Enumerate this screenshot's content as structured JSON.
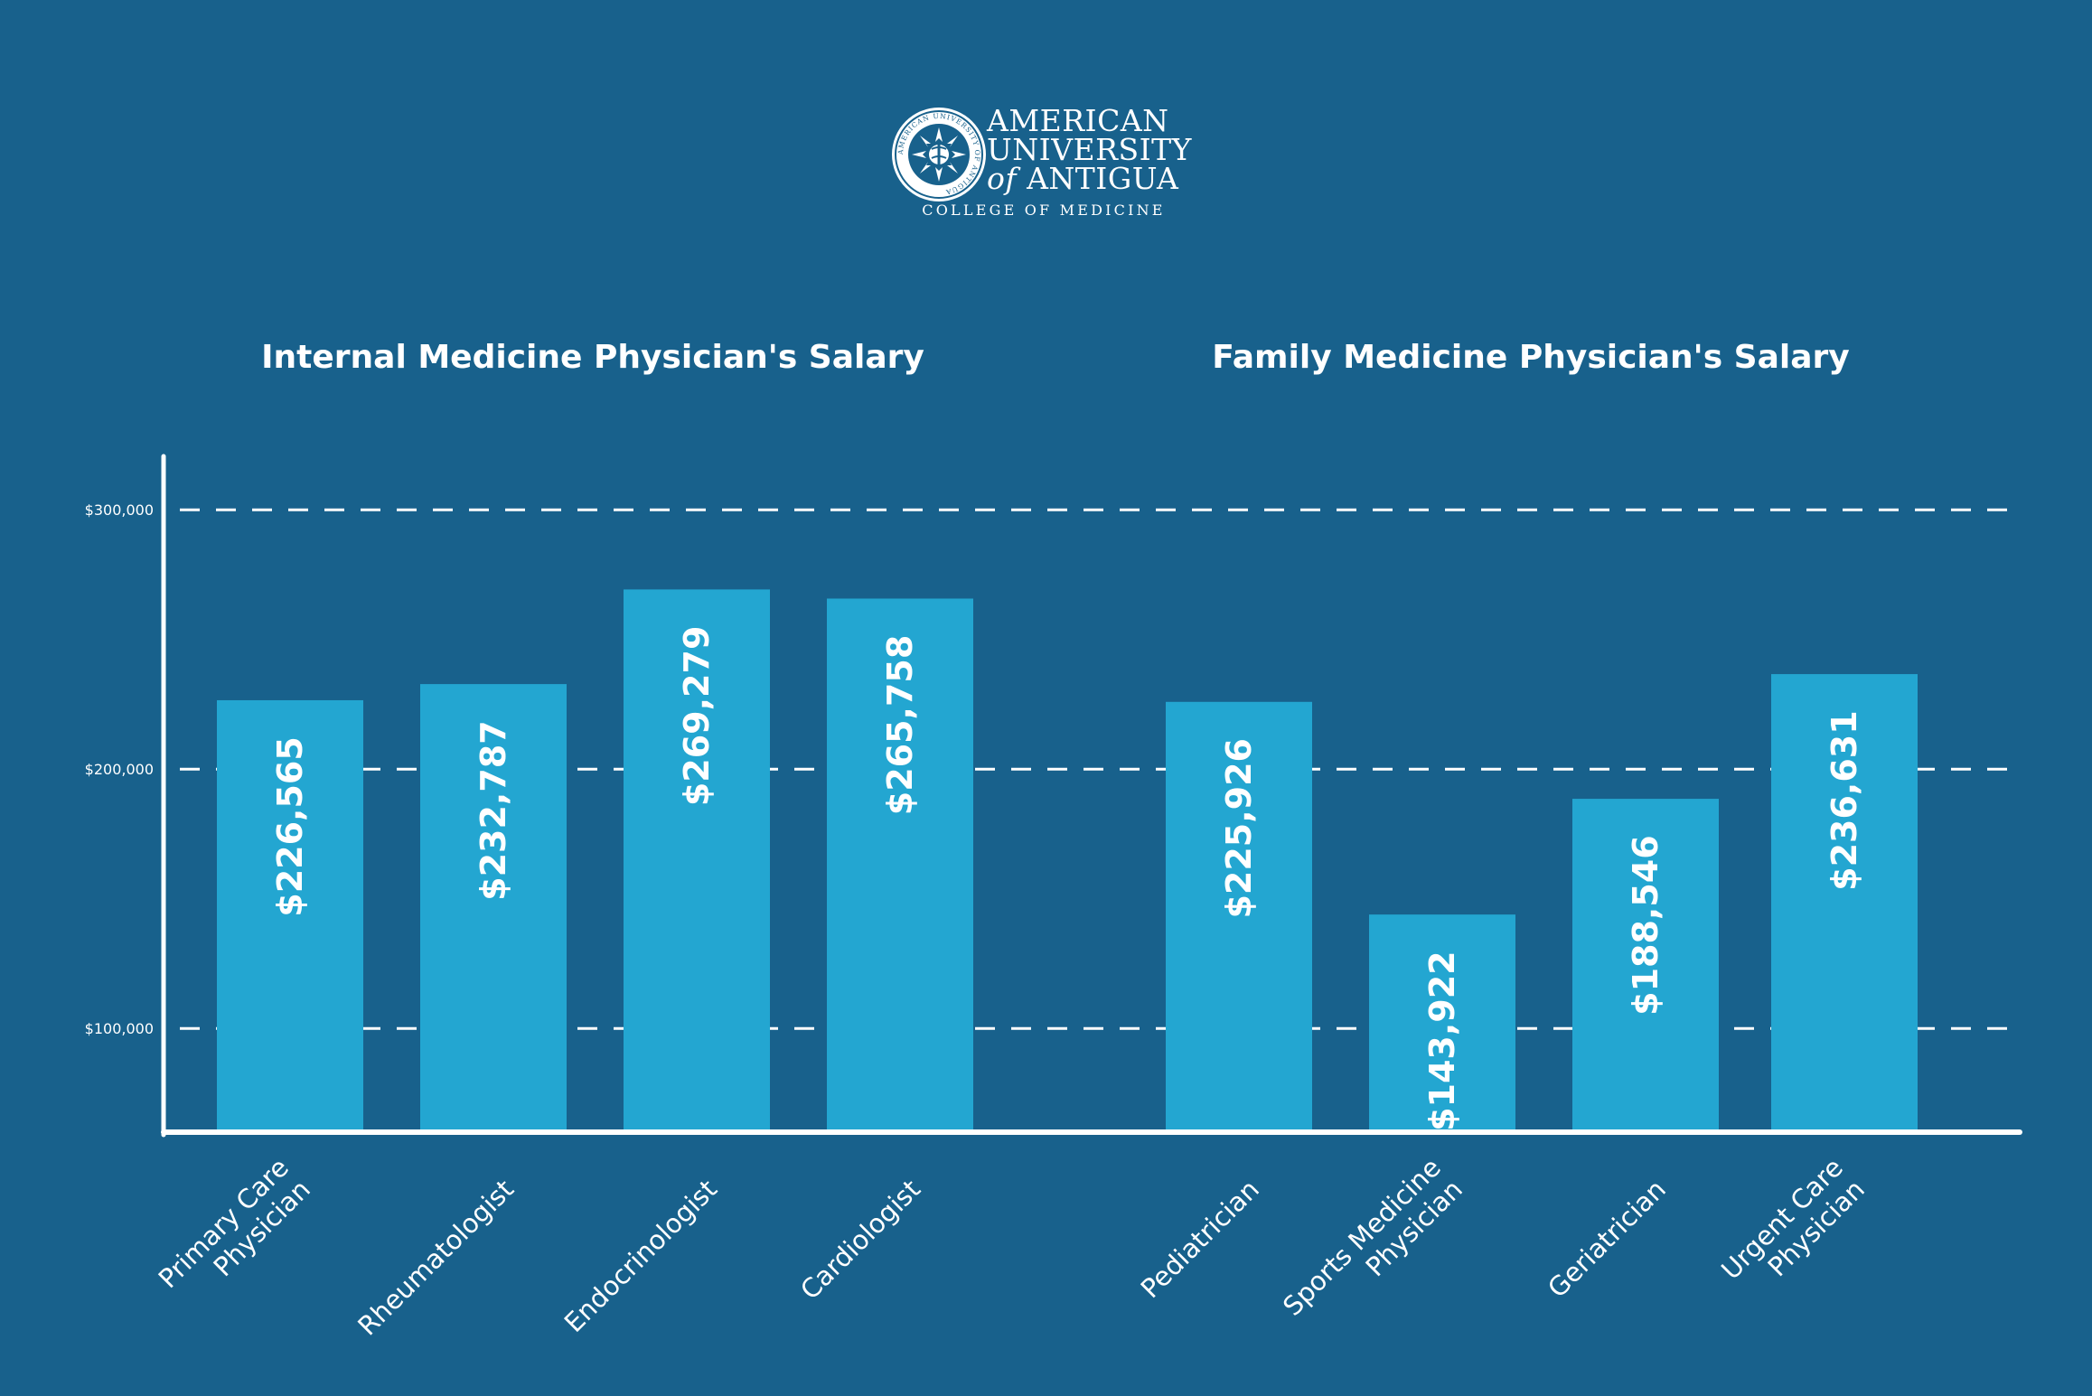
{
  "brand": {
    "name_line1": "AMERICAN",
    "name_line2": "UNIVERSITY",
    "name_of": "of",
    "name_line3": "ANTIGUA",
    "subtitle": "COLLEGE OF MEDICINE",
    "seal_text": "AMERICAN UNIVERSITY OF ANTIGUA"
  },
  "colors": {
    "background": "#18618c",
    "bar": "#23a6d1",
    "axis": "#ffffff",
    "text": "#ffffff"
  },
  "chart_data": {
    "type": "bar",
    "ylim": [
      60000,
      320000
    ],
    "yticks": [
      100000,
      200000,
      300000
    ],
    "ytick_labels": [
      "$100,000",
      "$200,000",
      "$300,000"
    ],
    "grid": "dashed horizontal",
    "panels": [
      {
        "title": "Internal Medicine Physician's Salary",
        "categories": [
          [
            "Primary Care",
            "Physician"
          ],
          [
            "Rheumatologist"
          ],
          [
            "Endocrinologist"
          ],
          [
            "Cardiologist"
          ]
        ],
        "values": [
          226565,
          232787,
          269279,
          265758
        ],
        "value_labels": [
          "$226,565",
          "$232,787",
          "$269,279",
          "$265,758"
        ]
      },
      {
        "title": "Family Medicine Physician's Salary",
        "categories": [
          [
            "Pediatrician"
          ],
          [
            "Sports Medicine",
            "Physician"
          ],
          [
            "Geriatrician"
          ],
          [
            "Urgent Care",
            "Physician"
          ]
        ],
        "values": [
          225926,
          143922,
          188546,
          236631
        ],
        "value_labels": [
          "$225,926",
          "$143,922",
          "$188,546",
          "$236,631"
        ]
      }
    ]
  }
}
